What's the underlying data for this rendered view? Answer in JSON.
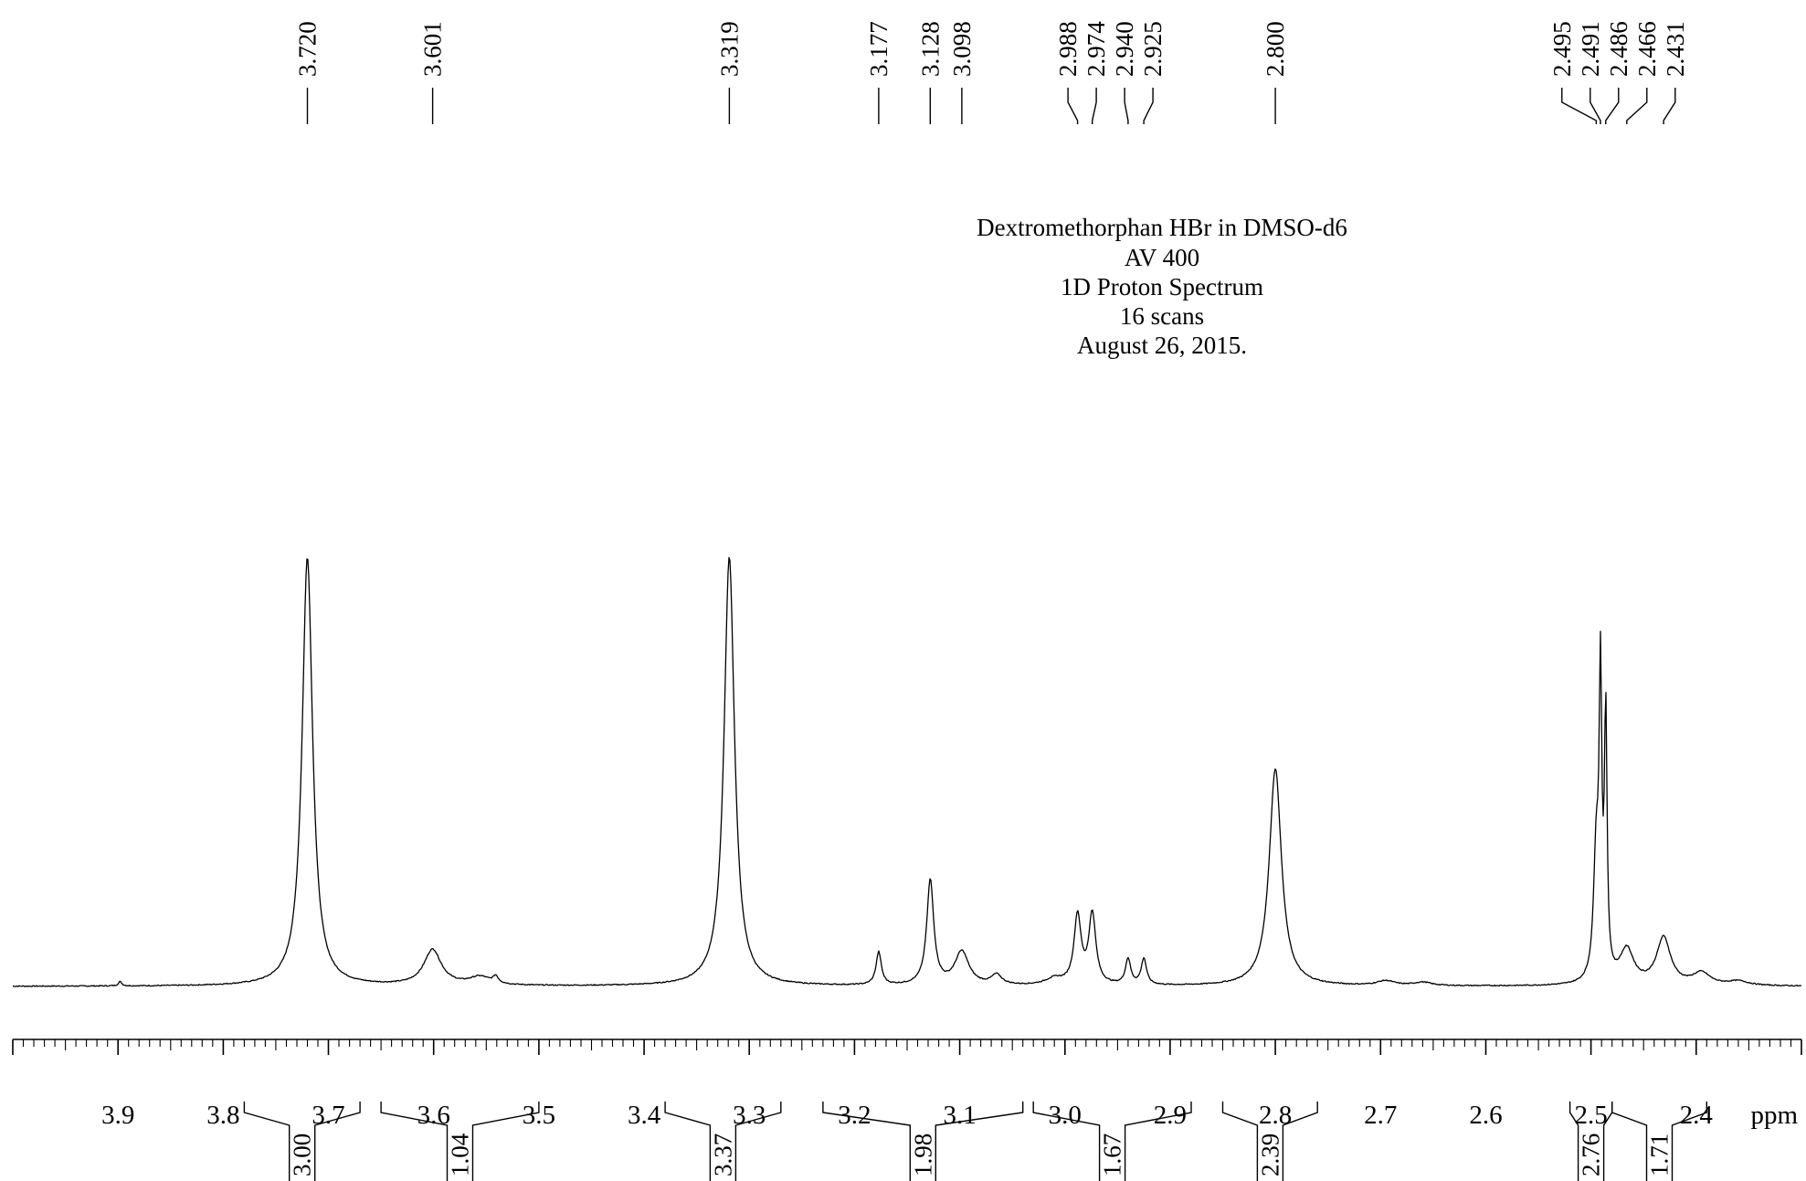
{
  "chart_data": {
    "type": "line",
    "title_lines": [
      "Dextromethorphan HBr in DMSO-d6",
      "AV 400",
      "1D Proton Spectrum",
      "16 scans",
      "August 26, 2015."
    ],
    "xlabel": "ppm",
    "ylabel": "",
    "xlim": [
      4.0,
      2.3
    ],
    "x_reversed": true,
    "grid": false,
    "legend": "none",
    "x_ticks": [
      "3.9",
      "3.8",
      "3.7",
      "3.6",
      "3.5",
      "3.4",
      "3.3",
      "3.2",
      "3.1",
      "3.0",
      "2.9",
      "2.8",
      "2.7",
      "2.6",
      "2.5",
      "2.4"
    ],
    "peak_labels": [
      {
        "ppm": 3.72,
        "label": "3.720"
      },
      {
        "ppm": 3.601,
        "label": "3.601"
      },
      {
        "ppm": 3.319,
        "label": "3.319"
      },
      {
        "ppm": 3.177,
        "label": "3.177"
      },
      {
        "ppm": 3.128,
        "label": "3.128"
      },
      {
        "ppm": 3.098,
        "label": "3.098"
      },
      {
        "ppm": 2.988,
        "label": "2.988"
      },
      {
        "ppm": 2.974,
        "label": "2.974"
      },
      {
        "ppm": 2.94,
        "label": "2.940"
      },
      {
        "ppm": 2.925,
        "label": "2.925"
      },
      {
        "ppm": 2.8,
        "label": "2.800"
      },
      {
        "ppm": 2.495,
        "label": "2.495"
      },
      {
        "ppm": 2.491,
        "label": "2.491"
      },
      {
        "ppm": 2.486,
        "label": "2.486"
      },
      {
        "ppm": 2.466,
        "label": "2.466"
      },
      {
        "ppm": 2.431,
        "label": "2.431"
      }
    ],
    "integrals": [
      {
        "from": 3.78,
        "to": 3.67,
        "value": "3.00"
      },
      {
        "from": 3.65,
        "to": 3.5,
        "value": "1.04"
      },
      {
        "from": 3.38,
        "to": 3.27,
        "value": "3.37"
      },
      {
        "from": 3.23,
        "to": 3.04,
        "value": "1.98"
      },
      {
        "from": 3.03,
        "to": 2.88,
        "value": "1.67"
      },
      {
        "from": 2.85,
        "to": 2.76,
        "value": "2.39"
      },
      {
        "from": 2.52,
        "to": 2.48,
        "value": "2.76"
      },
      {
        "from": 2.48,
        "to": 2.39,
        "value": "1.71"
      }
    ],
    "series": [
      {
        "peaks": [
          {
            "ppm": 3.72,
            "height": 100,
            "width": 0.006
          },
          {
            "ppm": 3.601,
            "height": 8.3,
            "width": 0.01
          },
          {
            "ppm": 3.556,
            "height": 1.9,
            "width": 0.012
          },
          {
            "ppm": 3.541,
            "height": 1.6,
            "width": 0.003
          },
          {
            "ppm": 3.898,
            "height": 1.0,
            "width": 0.002
          },
          {
            "ppm": 3.319,
            "height": 100,
            "width": 0.006
          },
          {
            "ppm": 3.177,
            "height": 7.7,
            "width": 0.003
          },
          {
            "ppm": 3.128,
            "height": 24.4,
            "width": 0.004
          },
          {
            "ppm": 3.098,
            "height": 7.8,
            "width": 0.008
          },
          {
            "ppm": 3.065,
            "height": 2.3,
            "width": 0.006
          },
          {
            "ppm": 3.01,
            "height": 1.5,
            "width": 0.01
          },
          {
            "ppm": 2.988,
            "height": 16.0,
            "width": 0.004
          },
          {
            "ppm": 2.974,
            "height": 16.4,
            "width": 0.004
          },
          {
            "ppm": 2.94,
            "height": 6.0,
            "width": 0.003
          },
          {
            "ppm": 2.925,
            "height": 6.1,
            "width": 0.003
          },
          {
            "ppm": 2.8,
            "height": 50.7,
            "width": 0.007
          },
          {
            "ppm": 2.695,
            "height": 1.1,
            "width": 0.01
          },
          {
            "ppm": 2.66,
            "height": 0.8,
            "width": 0.01
          },
          {
            "ppm": 2.495,
            "height": 30.0,
            "width": 0.003
          },
          {
            "ppm": 2.491,
            "height": 66.0,
            "width": 0.0015
          },
          {
            "ppm": 2.486,
            "height": 60.0,
            "width": 0.0015
          },
          {
            "ppm": 2.466,
            "height": 8.0,
            "width": 0.008
          },
          {
            "ppm": 2.431,
            "height": 11.0,
            "width": 0.008
          },
          {
            "ppm": 2.395,
            "height": 2.8,
            "width": 0.01
          },
          {
            "ppm": 2.36,
            "height": 1.0,
            "width": 0.012
          }
        ]
      }
    ]
  }
}
